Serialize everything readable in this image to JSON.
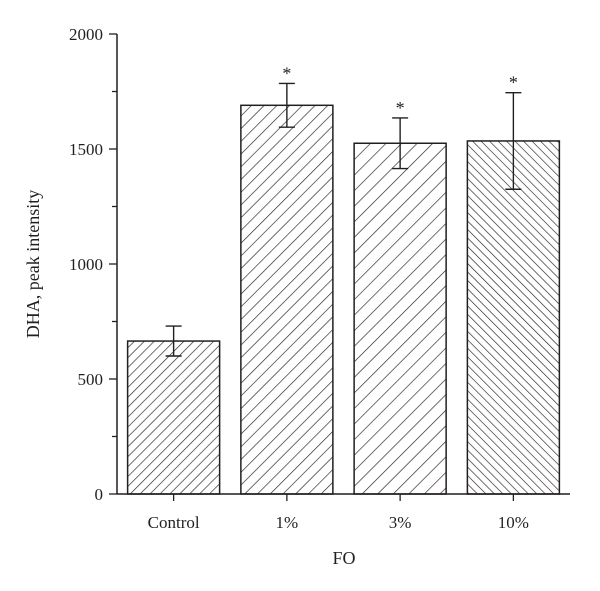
{
  "chart_data": {
    "type": "bar",
    "categories": [
      "Control",
      "1%",
      "3%",
      "10%"
    ],
    "values": [
      665,
      1690,
      1525,
      1535
    ],
    "errors": [
      65,
      95,
      110,
      210
    ],
    "significance": [
      "",
      "*",
      "*",
      "*"
    ],
    "hatch": [
      "dense-forward",
      "forward",
      "sparse-forward",
      "backward"
    ],
    "title": "",
    "xlabel": "FO",
    "ylabel": "DHA, peak intensity",
    "ylim": [
      0,
      2000
    ],
    "yticks_major": [
      0,
      500,
      1000,
      1500,
      2000
    ],
    "yticks_minor": [
      250,
      750,
      1250,
      1750
    ],
    "grid": false,
    "colors": {
      "stroke": "#231f20",
      "fill": "#ffffff"
    }
  }
}
